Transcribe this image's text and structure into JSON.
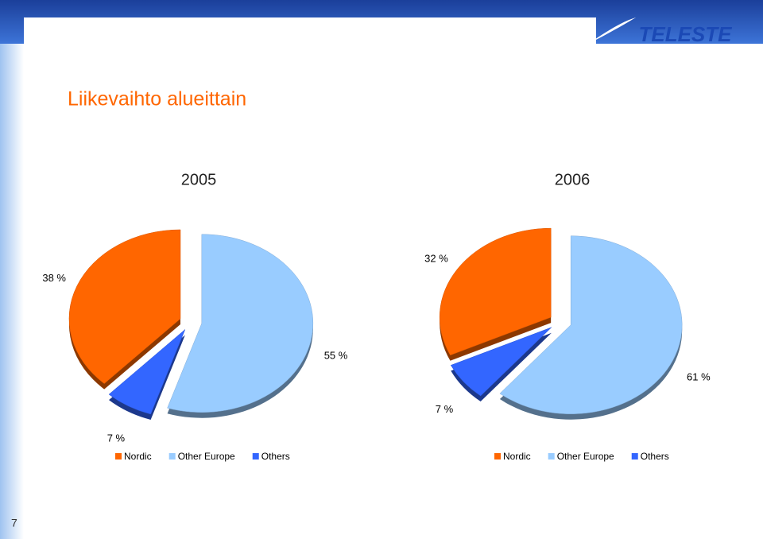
{
  "slide": {
    "title": "Liikevaihto alueittain",
    "logo": "TELESTE",
    "page": 7
  },
  "chart_data": [
    {
      "type": "pie",
      "title": "2005",
      "categories": [
        "Nordic",
        "Other Europe",
        "Others"
      ],
      "values": [
        38,
        55,
        7
      ],
      "value_labels": [
        "38 %",
        "55 %",
        "7 %"
      ],
      "colors": [
        "#ff6600",
        "#99ccff",
        "#3366ff"
      ]
    },
    {
      "type": "pie",
      "title": "2006",
      "categories": [
        "Nordic",
        "Other Europe",
        "Others"
      ],
      "values": [
        32,
        61,
        7
      ],
      "value_labels": [
        "32 %",
        "61 %",
        "7 %"
      ],
      "colors": [
        "#ff6600",
        "#99ccff",
        "#3366ff"
      ]
    }
  ]
}
